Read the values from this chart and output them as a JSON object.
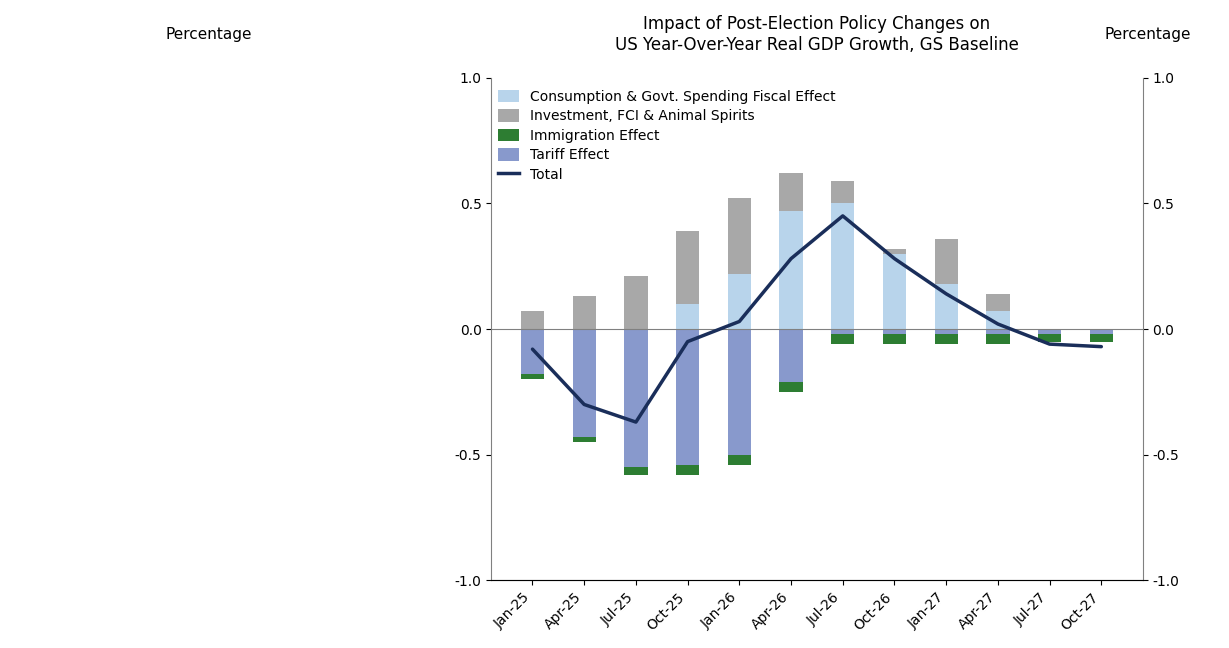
{
  "title": "Impact of Post-Election Policy Changes on\nUS Year-Over-Year Real GDP Growth, GS Baseline",
  "ylabel_left": "Percentage",
  "ylabel_right": "Percentage",
  "categories": [
    "Jan-25",
    "Apr-25",
    "Jul-25",
    "Oct-25",
    "Jan-26",
    "Apr-26",
    "Jul-26",
    "Oct-26",
    "Jan-27",
    "Apr-27",
    "Jul-27",
    "Oct-27"
  ],
  "consumption_fiscal": [
    0.0,
    0.0,
    0.0,
    0.1,
    0.22,
    0.47,
    0.5,
    0.3,
    0.18,
    0.07,
    0.0,
    0.0
  ],
  "investment_fci": [
    0.07,
    0.13,
    0.21,
    0.29,
    0.3,
    0.15,
    0.09,
    0.02,
    0.18,
    0.07,
    0.0,
    0.0
  ],
  "immigration": [
    -0.02,
    -0.02,
    -0.03,
    -0.04,
    -0.04,
    -0.04,
    -0.04,
    -0.04,
    -0.04,
    -0.04,
    -0.03,
    -0.03
  ],
  "tariff": [
    -0.18,
    -0.43,
    -0.55,
    -0.54,
    -0.5,
    -0.21,
    -0.02,
    -0.02,
    -0.02,
    -0.02,
    -0.02,
    -0.02
  ],
  "total": [
    -0.08,
    -0.3,
    -0.37,
    -0.05,
    0.03,
    0.28,
    0.45,
    0.28,
    0.14,
    0.02,
    -0.06,
    -0.07
  ],
  "color_consumption": "#b8d4eb",
  "color_investment": "#a8a8a8",
  "color_immigration": "#2d7d32",
  "color_tariff": "#8899cc",
  "color_total": "#1a2e5a",
  "ylim": [
    -1.0,
    1.0
  ],
  "yticks": [
    -1.0,
    -0.5,
    0.0,
    0.5,
    1.0
  ],
  "legend_labels": [
    "Consumption & Govt. Spending Fiscal Effect",
    "Investment, FCI & Animal Spirits",
    "Immigration Effect",
    "Tariff Effect",
    "Total"
  ],
  "background_color": "#ffffff",
  "bar_width": 0.45,
  "title_fontsize": 12,
  "label_fontsize": 11,
  "tick_fontsize": 10,
  "legend_fontsize": 10
}
